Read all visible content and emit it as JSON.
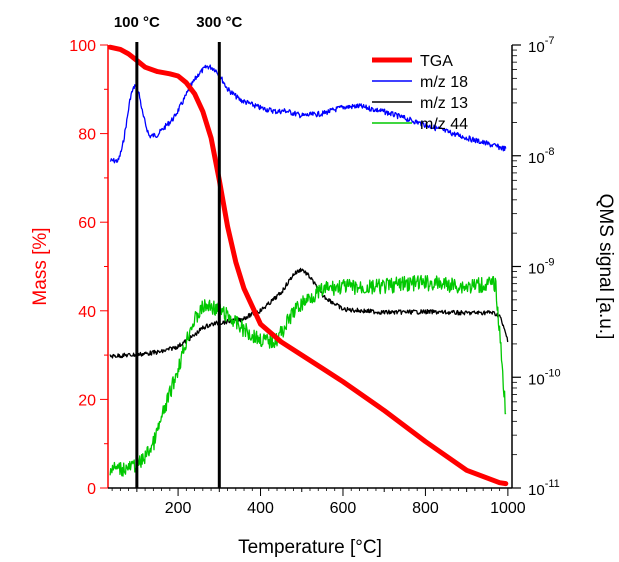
{
  "chart_data": {
    "type": "line",
    "title": "",
    "xlabel": "Temperature [°C]",
    "ylabel": "Mass [%]",
    "y2label": "QMS signal [a.u.]",
    "xlim": [
      30,
      1010
    ],
    "ylim": [
      0,
      100
    ],
    "y2lim_log10": [
      -11,
      -7
    ],
    "y2_scale": "log",
    "x_ticks": [
      200,
      400,
      600,
      800,
      1000
    ],
    "y_ticks": [
      0,
      20,
      40,
      60,
      80,
      100
    ],
    "y2_ticks": [
      {
        "value": 1e-11,
        "base": "10",
        "exp": "-11"
      },
      {
        "value": 1e-10,
        "base": "10",
        "exp": "-10"
      },
      {
        "value": 1e-09,
        "base": "10",
        "exp": "-9"
      },
      {
        "value": 1e-08,
        "base": "10",
        "exp": "-8"
      },
      {
        "value": 1e-07,
        "base": "10",
        "exp": "-7"
      }
    ],
    "grid": false,
    "legend_position": "top-right",
    "annotations": [
      {
        "label": "100 °C",
        "x": 100
      },
      {
        "label": "300 °C",
        "x": 300
      }
    ],
    "series": [
      {
        "name": "TGA",
        "axis": "left",
        "color": "#ff0000",
        "x": [
          35,
          60,
          80,
          100,
          120,
          150,
          180,
          200,
          220,
          240,
          260,
          280,
          300,
          320,
          340,
          360,
          380,
          400,
          450,
          500,
          550,
          600,
          700,
          800,
          900,
          980,
          995
        ],
        "y": [
          99.5,
          99,
          98,
          96.5,
          95,
          94,
          93.5,
          93,
          91.5,
          89,
          85,
          79,
          69.5,
          59,
          51,
          45,
          41,
          37,
          33,
          30,
          27,
          24,
          17.5,
          10.5,
          4,
          1.2,
          1
        ]
      },
      {
        "name": "m/z 18",
        "axis": "right",
        "color": "#0000ff",
        "x": [
          35,
          55,
          65,
          75,
          85,
          95,
          105,
          115,
          130,
          150,
          170,
          190,
          210,
          230,
          250,
          270,
          280,
          290,
          300,
          320,
          350,
          400,
          440,
          460,
          500,
          550,
          600,
          640,
          700,
          800,
          900,
          995
        ],
        "y": [
          9e-09,
          9e-09,
          1.2e-08,
          2e-08,
          3.5e-08,
          4.3e-08,
          3.7e-08,
          2.3e-08,
          1.5e-08,
          1.55e-08,
          1.85e-08,
          2.2e-08,
          3e-08,
          4.2e-08,
          5.5e-08,
          6.4e-08,
          6.3e-08,
          6e-08,
          5.4e-08,
          4e-08,
          3.2e-08,
          2.7e-08,
          2.5e-08,
          2.55e-08,
          2.3e-08,
          2.4e-08,
          2.75e-08,
          2.8e-08,
          2.5e-08,
          1.9e-08,
          1.45e-08,
          1.15e-08
        ]
      },
      {
        "name": "m/z 13",
        "axis": "right",
        "color": "#000000",
        "x": [
          35,
          100,
          160,
          200,
          240,
          260,
          280,
          300,
          350,
          400,
          420,
          450,
          480,
          500,
          520,
          550,
          600,
          700,
          800,
          900,
          960,
          980,
          1000
        ],
        "y": [
          1.55e-10,
          1.6e-10,
          1.7e-10,
          1.9e-10,
          2.4e-10,
          2.8e-10,
          3e-10,
          3.1e-10,
          3.3e-10,
          4e-10,
          4.6e-10,
          5.8e-10,
          8.5e-10,
          9.5e-10,
          8e-10,
          5.5e-10,
          4.1e-10,
          3.85e-10,
          3.9e-10,
          3.8e-10,
          3.85e-10,
          3.6e-10,
          2.15e-10
        ]
      },
      {
        "name": "m/z 44",
        "axis": "right",
        "color": "#00c800",
        "x": [
          35,
          80,
          110,
          140,
          170,
          200,
          230,
          260,
          280,
          300,
          320,
          340,
          360,
          380,
          400,
          420,
          440,
          460,
          480,
          500,
          520,
          560,
          600,
          650,
          700,
          750,
          800,
          850,
          900,
          950,
          970,
          985,
          995
        ],
        "y": [
          1.5e-11,
          1.5e-11,
          1.7e-11,
          2.5e-11,
          5.5e-11,
          1.2e-10,
          2.8e-10,
          4.3e-10,
          4.4e-10,
          4e-10,
          3.6e-10,
          3.1e-10,
          2.7e-10,
          2.4e-10,
          2.2e-10,
          2.1e-10,
          2.2e-10,
          2.9e-10,
          3.9e-10,
          4.6e-10,
          5.3e-10,
          6.3e-10,
          6.6e-10,
          6.4e-10,
          6.6e-10,
          7e-10,
          7.1e-10,
          6.9e-10,
          6.6e-10,
          6.9e-10,
          7e-10,
          1.5e-10,
          4.5e-11
        ]
      }
    ]
  }
}
